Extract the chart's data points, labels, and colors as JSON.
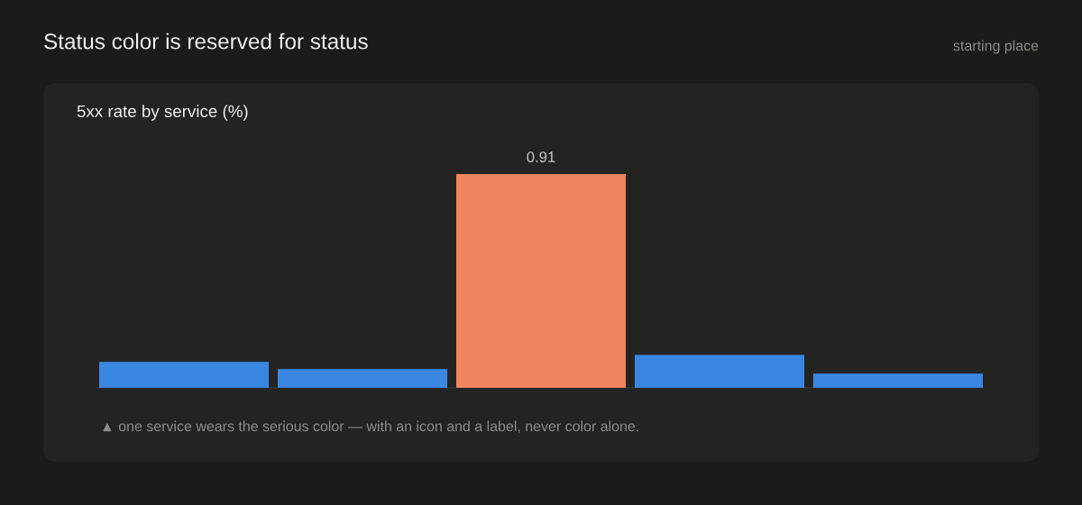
{
  "chart_data": {
    "type": "bar",
    "title": "Status color is reserved for status",
    "subtitle": "5xx rate by service (%)",
    "annotations": [
      "starting place",
      "▲ one service wears the serious color — with an icon and a label, never color alone."
    ],
    "categories": [
      null,
      null,
      null,
      null,
      null
    ],
    "values": [
      0.11,
      0.08,
      0.91,
      0.14,
      0.06
    ],
    "colors": [
      "#3a87e2",
      "#3a87e2",
      "#ee855e",
      "#3a87e2",
      "#3a87e2"
    ],
    "value_labels": [
      null,
      null,
      "0.91",
      null,
      null
    ],
    "tick_labels": false,
    "grid": false
  }
}
